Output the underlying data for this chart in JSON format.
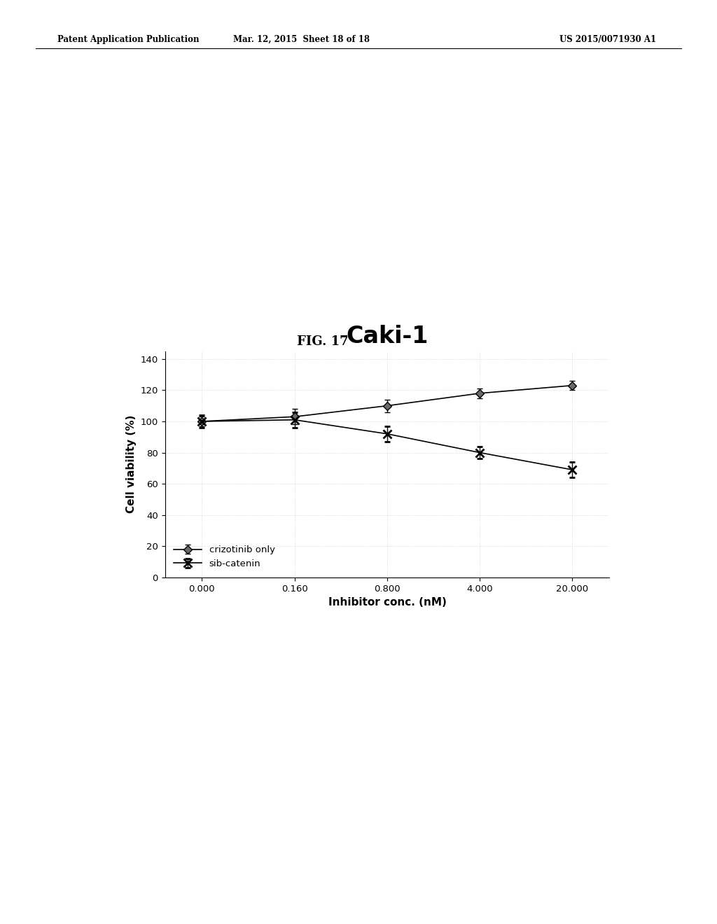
{
  "fig_label": "FIG. 17",
  "chart_title": "Caki-1",
  "patent_left": "Patent Application Publication",
  "patent_mid": "Mar. 12, 2015  Sheet 18 of 18",
  "patent_right": "US 2015/0071930 A1",
  "xlabel": "Inhibitor conc. (nM)",
  "ylabel": "Cell viability (%)",
  "x_tick_labels": [
    "0.000",
    "0.160",
    "0.800",
    "4.000",
    "20.000"
  ],
  "x_positions": [
    0,
    1,
    2,
    3,
    4
  ],
  "ylim": [
    0,
    145
  ],
  "yticks": [
    0,
    20,
    40,
    60,
    80,
    100,
    120,
    140
  ],
  "crizotinib_y": [
    100,
    103,
    110,
    118,
    123
  ],
  "crizotinib_yerr": [
    3,
    5,
    4,
    3,
    3
  ],
  "sib_catenin_y": [
    100,
    101,
    92,
    80,
    69
  ],
  "sib_catenin_yerr": [
    4,
    5,
    5,
    4,
    5
  ],
  "line_color": "#000000",
  "background_color": "#ffffff",
  "legend_labels": [
    "crizotinib only",
    "sib-catenin"
  ],
  "crizotinib_marker": "D",
  "sib_catenin_marker": "x"
}
